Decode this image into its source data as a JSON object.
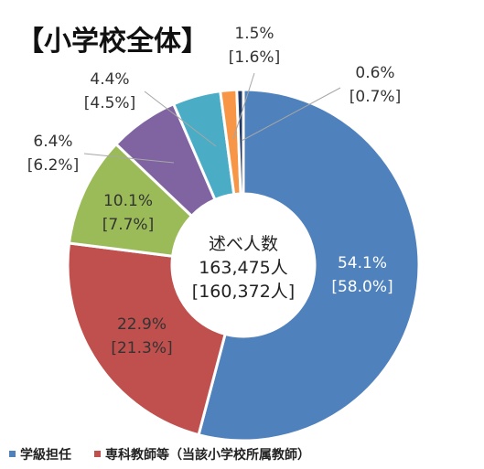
{
  "chart_data": {
    "type": "donut",
    "title": "【小学校全体】",
    "center_label": {
      "line1": "述べ人数",
      "line2": "163,475人",
      "line3": "[160,372人]"
    },
    "series": [
      {
        "name": "学級担任",
        "value": 54.1,
        "bracket": 58.0,
        "label": "54.1%",
        "label2": "[58.0%]",
        "color": "#4F81BD"
      },
      {
        "name": "専科教師等（当該小学校所属教師）",
        "value": 22.9,
        "bracket": 21.3,
        "label": "22.9%",
        "label2": "[21.3%]",
        "color": "#C0504D"
      },
      {
        "name": "",
        "value": 10.1,
        "bracket": 7.7,
        "label": "10.1%",
        "label2": "[7.7%]",
        "color": "#9BBB59"
      },
      {
        "name": "",
        "value": 6.4,
        "bracket": 6.2,
        "label": "6.4%",
        "label2": "[6.2%]",
        "color": "#8064A2"
      },
      {
        "name": "",
        "value": 4.4,
        "bracket": 4.5,
        "label": "4.4%",
        "label2": "[4.5%]",
        "color": "#4BACC6"
      },
      {
        "name": "",
        "value": 1.5,
        "bracket": 1.6,
        "label": "1.5%",
        "label2": "[1.6%]",
        "color": "#F79646"
      },
      {
        "name": "",
        "value": 0.6,
        "bracket": 0.7,
        "label": "0.6%",
        "label2": "[0.7%]",
        "color": "#1F3864"
      }
    ],
    "legend": {
      "placement": "bottom",
      "items": [
        "学級担任",
        "専科教師等（当該小学校所属教師）"
      ]
    }
  }
}
